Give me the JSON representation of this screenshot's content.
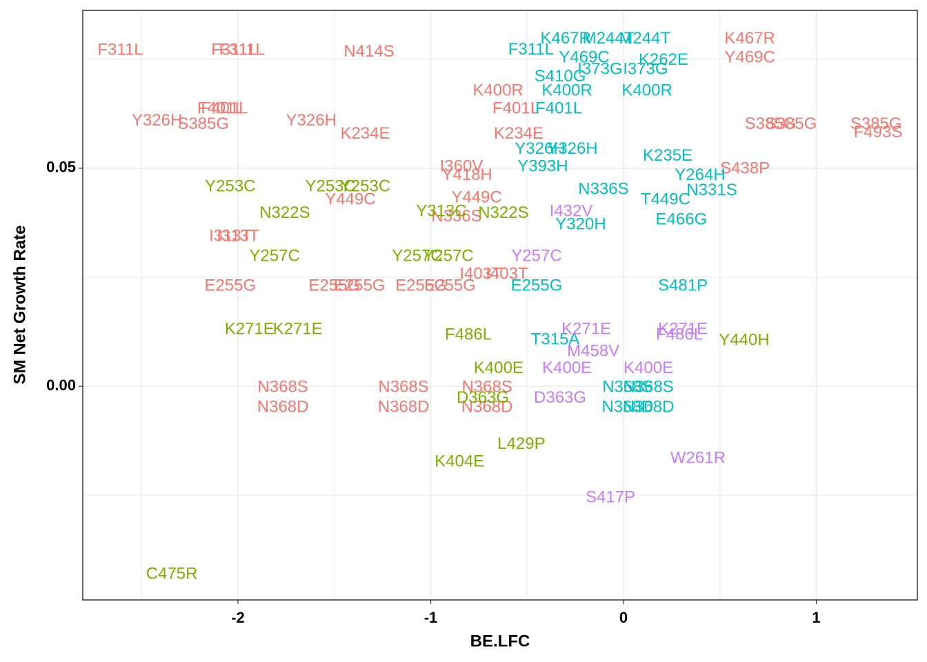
{
  "chart_data": {
    "type": "scatter",
    "x_label": "BE.LFC",
    "y_label": "SM Net Growth Rate",
    "xlim": [
      -2.805,
      1.524
    ],
    "ylim": [
      -0.049,
      0.0862
    ],
    "xticks": [
      -2,
      -1,
      0,
      1
    ],
    "yticks": [
      {
        "value": 0,
        "label": "0.00"
      },
      {
        "value": 0.05,
        "label": "0.05"
      }
    ],
    "x_minor_grid": [
      -2.5,
      -1.5,
      -0.5,
      0.5
    ],
    "y_minor_grid": [
      -0.025,
      0.025,
      0.075
    ],
    "grid": true,
    "series": [
      {
        "color": "#F8766D",
        "labels": [
          "F311L",
          "F311L",
          "F311L",
          "N414S",
          "K467R",
          "Y469C",
          "K400R",
          "F401L",
          "F401L",
          "F401L",
          "Y326H",
          "S385G",
          "Y326H",
          "K234E",
          "K234E",
          "S385G",
          "S385G",
          "S385G",
          "F493S",
          "I360V",
          "Y418H",
          "S438P",
          "Y449C",
          "Y449C",
          "N336S",
          "I313T",
          "I313T",
          "E255G",
          "E255G",
          "E255G",
          "E255G",
          "E255G",
          "I403T",
          "I403T",
          "N368S",
          "N368D",
          "N368S",
          "N368D",
          "N368S",
          "N368D"
        ],
        "x": [
          -2.61,
          -2.02,
          -1.98,
          -1.32,
          0.655,
          0.655,
          -0.651,
          -0.558,
          -2.09,
          -2.07,
          -2.42,
          -2.18,
          -1.62,
          -1.34,
          -0.544,
          0.762,
          0.869,
          1.31,
          1.32,
          -0.841,
          -0.812,
          0.63,
          -0.762,
          -1.417,
          -0.866,
          -2.04,
          -2.0,
          -2.04,
          -1.5,
          -1.37,
          -1.05,
          -0.9,
          -0.741,
          -0.605,
          -1.767,
          -1.767,
          -1.141,
          -1.141,
          -0.708,
          -0.708
        ],
        "y": [
          0.077,
          0.077,
          0.077,
          0.0766,
          0.0796,
          0.0753,
          0.0677,
          0.0636,
          0.0636,
          0.0636,
          0.0608,
          0.06,
          0.0608,
          0.0578,
          0.0578,
          0.06,
          0.06,
          0.06,
          0.0581,
          0.0503,
          0.0483,
          0.0498,
          0.0432,
          0.0427,
          0.0388,
          0.0343,
          0.0343,
          0.0229,
          0.0229,
          0.0229,
          0.0229,
          0.0229,
          0.0256,
          0.0256,
          -0.0003,
          -0.0049,
          -0.0003,
          -0.0049,
          -0.0003,
          -0.0049
        ]
      },
      {
        "color": "#7CAE00",
        "labels": [
          "Y253C",
          "Y253C",
          "Y253C",
          "N322S",
          "Y313C",
          "N322S",
          "Y257C",
          "Y257C",
          "Y257C",
          "K271E",
          "K271E",
          "F486L",
          "K400E",
          "D363G",
          "L429P",
          "K404E",
          "C475R",
          "Y440H"
        ],
        "x": [
          -2.04,
          -1.52,
          -1.34,
          -1.757,
          -0.945,
          -0.623,
          -1.81,
          -1.07,
          -0.909,
          -1.94,
          -1.69,
          -0.805,
          -0.648,
          -0.73,
          -0.53,
          -0.851,
          -2.343,
          0.626
        ],
        "y": [
          0.0457,
          0.0457,
          0.0457,
          0.0396,
          0.04,
          0.0396,
          0.0297,
          0.0297,
          0.0297,
          0.013,
          0.013,
          0.0117,
          0.004,
          -0.0028,
          -0.0134,
          -0.0174,
          -0.0432,
          0.0104
        ]
      },
      {
        "color": "#00BFC4",
        "labels": [
          "K467R",
          "M244T",
          "M244T",
          "F311L",
          "Y469C",
          "K262E",
          "I373G",
          "I373G",
          "S410G",
          "K400R",
          "K400R",
          "F401L",
          "Y326H",
          "Y326H",
          "Y393H",
          "K235E",
          "Y264H",
          "N331S",
          "N336S",
          "Y320H",
          "E466G",
          "T449C",
          "S481P",
          "E255G",
          "T315A",
          "N368S",
          "N368S",
          "N368D",
          "N368D"
        ],
        "x": [
          -0.3,
          -0.079,
          0.11,
          -0.48,
          -0.204,
          0.207,
          -0.122,
          0.114,
          -0.329,
          -0.293,
          0.122,
          -0.336,
          -0.433,
          -0.265,
          -0.419,
          0.229,
          0.397,
          0.458,
          -0.104,
          -0.222,
          0.3,
          0.218,
          0.308,
          -0.451,
          -0.354,
          0.021,
          0.129,
          0.021,
          0.129
        ],
        "y": [
          0.0796,
          0.0796,
          0.0796,
          0.0771,
          0.0753,
          0.0747,
          0.0726,
          0.0726,
          0.0709,
          0.0677,
          0.0677,
          0.0636,
          0.0543,
          0.0543,
          0.0503,
          0.0527,
          0.0483,
          0.0448,
          0.0451,
          0.037,
          0.0381,
          0.0427,
          0.0229,
          0.0229,
          0.0106,
          -0.0003,
          -0.0003,
          -0.0049,
          -0.0049
        ]
      },
      {
        "color": "#C77CFF",
        "labels": [
          "Y257C",
          "I432V",
          "K271E",
          "K271E",
          "M458V",
          "F486L",
          "K400E",
          "K400E",
          "D363G",
          "W261R",
          "S417P"
        ],
        "x": [
          -0.451,
          -0.272,
          -0.193,
          0.308,
          -0.157,
          0.29,
          -0.293,
          0.129,
          -0.329,
          0.386,
          -0.068
        ],
        "y": [
          0.0297,
          0.04,
          0.013,
          0.013,
          0.0079,
          0.0117,
          0.004,
          0.004,
          -0.0028,
          -0.0166,
          -0.0256
        ]
      }
    ]
  }
}
